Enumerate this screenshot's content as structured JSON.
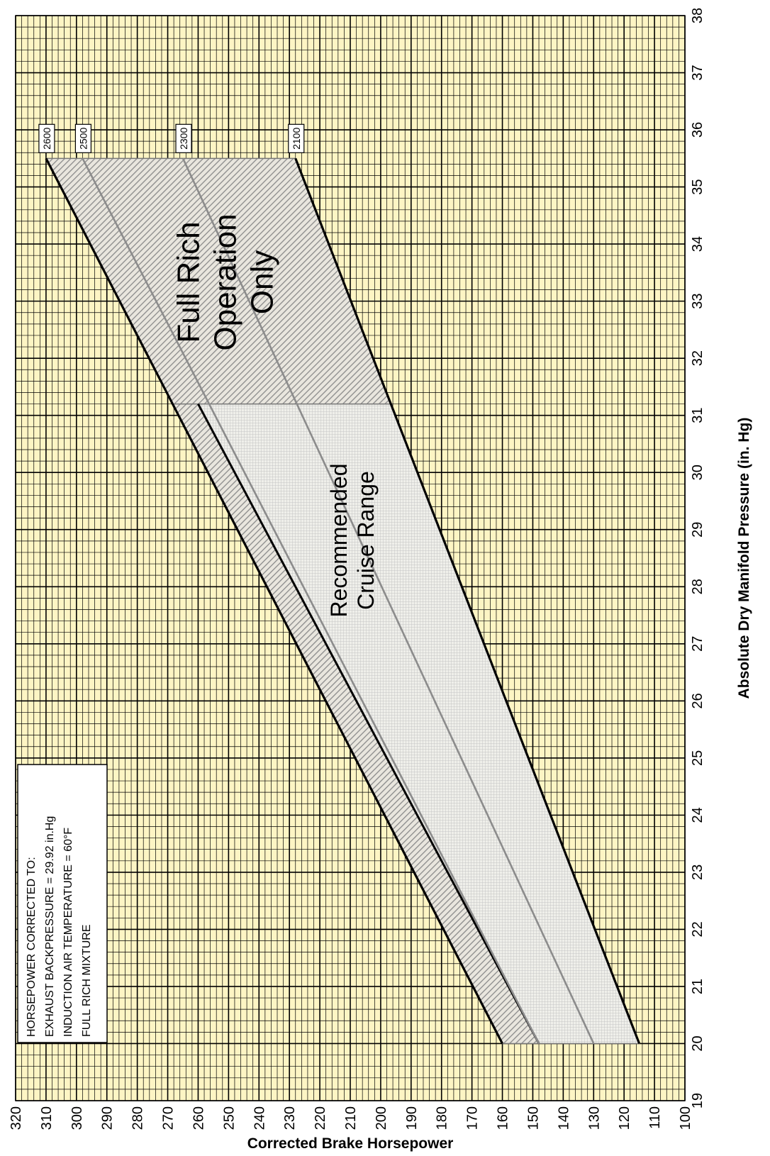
{
  "chart_data": {
    "type": "line",
    "orientation": "rotated-90-cw",
    "x_axis": {
      "label": "Absolute Dry Manifold Pressure (in. Hg)",
      "range": [
        19,
        38
      ],
      "ticks": [
        "19",
        "20",
        "21",
        "22",
        "23",
        "24",
        "25",
        "26",
        "27",
        "28",
        "29",
        "30",
        "31",
        "32",
        "33",
        "34",
        "35",
        "36",
        "37",
        "38"
      ]
    },
    "y_axis": {
      "label": "Corrected Brake Horsepower",
      "range": [
        100,
        320
      ],
      "ticks": [
        "100",
        "110",
        "120",
        "130",
        "140",
        "150",
        "160",
        "170",
        "180",
        "190",
        "200",
        "210",
        "220",
        "230",
        "240",
        "250",
        "260",
        "270",
        "280",
        "290",
        "300",
        "310",
        "320"
      ]
    },
    "grid": true,
    "background_color": "#fdf5c4",
    "series": [
      {
        "name": "2600",
        "color": "#000000",
        "x": [
          20,
          35.5
        ],
        "y": [
          160,
          310
        ]
      },
      {
        "name": "2500",
        "color": "#8c8c8c",
        "x": [
          20,
          35.5
        ],
        "y": [
          148,
          298
        ]
      },
      {
        "name": "2300",
        "color": "#8c8c8c",
        "x": [
          20,
          35.5
        ],
        "y": [
          130,
          265
        ]
      },
      {
        "name": "2100",
        "color": "#000000",
        "x": [
          20,
          35.5
        ],
        "y": [
          115,
          228
        ]
      }
    ],
    "lower_boundary": {
      "color": "#000000",
      "x": [
        20,
        31.2
      ],
      "y": [
        148,
        260
      ]
    },
    "regions": [
      {
        "label_lines": [
          "Full Rich",
          "Operation",
          "Only"
        ],
        "x_range": [
          31.2,
          35.5
        ],
        "pattern": "diagonal-hatch"
      },
      {
        "label_lines": [
          "Recommended",
          "Cruise Range"
        ],
        "x_range": [
          20,
          31.2
        ],
        "pattern": "fine-grid"
      }
    ],
    "note_lines": [
      "HORSEPOWER CORRECTED TO:",
      "EXHAUST BACKPRESSURE = 29.92 in.Hg",
      "INDUCTION AIR TEMPERATURE = 60°F",
      "FULL RICH MIXTURE"
    ]
  }
}
